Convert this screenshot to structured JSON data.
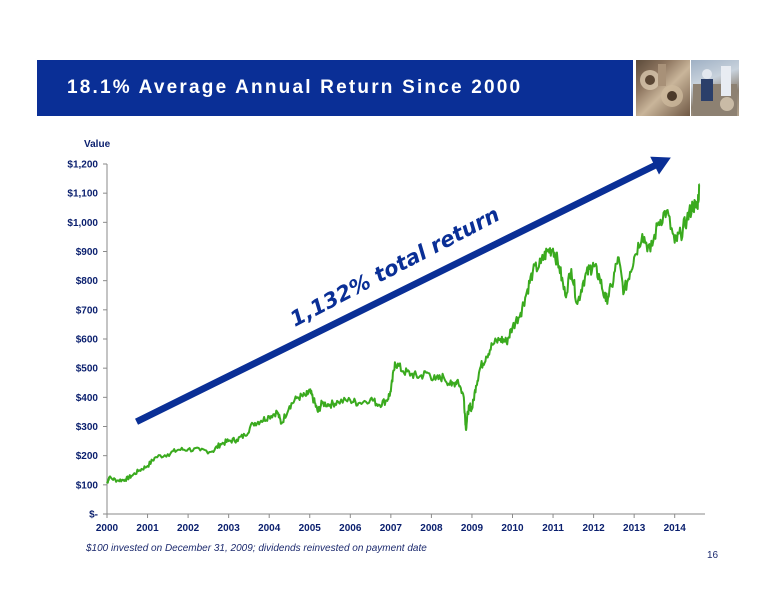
{
  "slide": {
    "title": "18.1% Average Annual Return Since 2000",
    "footnote": "$100 invested on December 31, 2009;  dividends reinvested on payment date",
    "page_number": "16"
  },
  "colors": {
    "banner": "#0a2f96",
    "line": "#3aaa1e",
    "axis_text": "#0a1f6e",
    "arrow_fill": "#0a2f96",
    "annotation": "#0a2f96"
  },
  "chart_data": {
    "type": "line",
    "ylabel": "Value",
    "ylim": [
      0,
      1200
    ],
    "ytick_values": [
      0,
      100,
      200,
      300,
      400,
      500,
      600,
      700,
      800,
      900,
      1000,
      1100,
      1200
    ],
    "ytick_labels": [
      "$-",
      "$100",
      "$200",
      "$300",
      "$400",
      "$500",
      "$600",
      "$700",
      "$800",
      "$900",
      "$1,000",
      "$1,100",
      "$1,200"
    ],
    "xlim": [
      2000,
      2014.7
    ],
    "xtick_values": [
      2000,
      2001,
      2002,
      2003,
      2004,
      2005,
      2006,
      2007,
      2008,
      2009,
      2010,
      2011,
      2012,
      2013,
      2014
    ],
    "xtick_labels": [
      "2000",
      "2001",
      "2002",
      "2003",
      "2004",
      "2005",
      "2006",
      "2007",
      "2008",
      "2009",
      "2010",
      "2011",
      "2012",
      "2013",
      "2014"
    ],
    "annotation": "1,132% total return",
    "grid": false,
    "series": [
      {
        "x": [
          2000.0,
          2000.05,
          2000.25,
          2000.45,
          2000.6,
          2000.8,
          2001.0,
          2001.2,
          2001.5,
          2001.75,
          2002.0,
          2002.3,
          2002.6,
          2002.8,
          2003.0,
          2003.2,
          2003.4,
          2003.6,
          2003.8,
          2004.0,
          2004.2,
          2004.3,
          2004.5,
          2004.7,
          2004.9,
          2005.0,
          2005.1,
          2005.2,
          2005.3,
          2005.5,
          2005.7,
          2006.0,
          2006.2,
          2006.5,
          2006.7,
          2006.9,
          2007.0,
          2007.1,
          2007.3,
          2007.5,
          2007.7,
          2007.9,
          2008.1,
          2008.3,
          2008.5,
          2008.65,
          2008.8,
          2008.85,
          2008.9,
          2008.95,
          2009.0,
          2009.1,
          2009.2,
          2009.35,
          2009.5,
          2009.7,
          2009.85,
          2010.0,
          2010.2,
          2010.35,
          2010.5,
          2010.7,
          2010.85,
          2011.0,
          2011.15,
          2011.3,
          2011.45,
          2011.6,
          2011.75,
          2011.9,
          2012.0,
          2012.15,
          2012.3,
          2012.45,
          2012.6,
          2012.75,
          2012.9,
          2013.0,
          2013.2,
          2013.4,
          2013.6,
          2013.8,
          2014.0,
          2014.15,
          2014.3,
          2014.45,
          2014.55,
          2014.62
        ],
        "values": [
          105,
          125,
          115,
          118,
          130,
          150,
          165,
          195,
          205,
          220,
          222,
          218,
          215,
          240,
          250,
          255,
          270,
          310,
          320,
          335,
          350,
          310,
          370,
          400,
          405,
          420,
          390,
          350,
          380,
          375,
          385,
          390,
          380,
          395,
          375,
          390,
          420,
          520,
          490,
          480,
          470,
          485,
          460,
          470,
          440,
          460,
          400,
          290,
          350,
          370,
          360,
          440,
          500,
          540,
          580,
          600,
          590,
          640,
          690,
          760,
          830,
          860,
          900,
          910,
          850,
          750,
          840,
          720,
          800,
          840,
          850,
          810,
          730,
          780,
          880,
          760,
          830,
          880,
          960,
          900,
          1000,
          1040,
          930,
          960,
          1010,
          1060,
          1050,
          1130
        ]
      }
    ]
  }
}
